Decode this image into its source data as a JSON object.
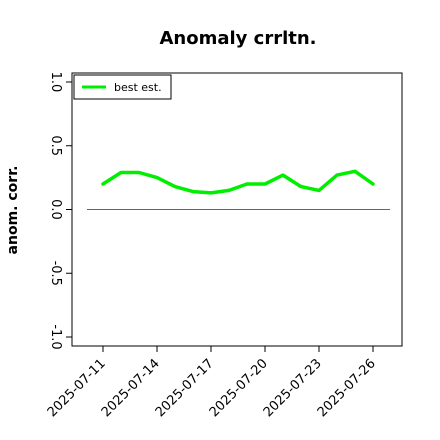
{
  "chart_data": {
    "type": "line",
    "title": "Anomaly crrltn.",
    "xlabel": "",
    "ylabel": "anom. corr.",
    "x": [
      "2025-07-11",
      "2025-07-12",
      "2025-07-13",
      "2025-07-14",
      "2025-07-15",
      "2025-07-16",
      "2025-07-17",
      "2025-07-18",
      "2025-07-19",
      "2025-07-20",
      "2025-07-21",
      "2025-07-22",
      "2025-07-23",
      "2025-07-24",
      "2025-07-25",
      "2025-07-26"
    ],
    "x_tick_labels": [
      "2025-07-11",
      "2025-07-14",
      "2025-07-17",
      "2025-07-20",
      "2025-07-23",
      "2025-07-26"
    ],
    "ylim": [
      -1.0,
      1.0
    ],
    "y_ticks": [
      -1.0,
      -0.5,
      0.0,
      0.5,
      1.0
    ],
    "y_tick_labels": [
      "-1.0",
      "-0.5",
      "0.0",
      "0.5",
      "1.0"
    ],
    "reference_line": 0.0,
    "series": [
      {
        "name": "best est.",
        "color": "#00ee00",
        "values": [
          0.2,
          0.29,
          0.29,
          0.25,
          0.18,
          0.14,
          0.13,
          0.15,
          0.2,
          0.2,
          0.27,
          0.18,
          0.15,
          0.27,
          0.3,
          0.2
        ]
      }
    ],
    "legend_position": "top-left",
    "grid": false
  }
}
